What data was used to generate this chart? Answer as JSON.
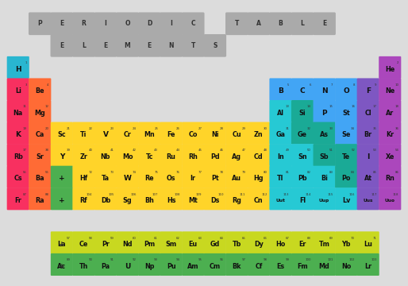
{
  "colors": {
    "H_alkali": "#29b6d0",
    "alkali": "#f83060",
    "alkaline": "#ff6b35",
    "transition": "#ffd429",
    "lanthanide": "#c8d820",
    "actinide": "#4caf50",
    "post_transition": "#26c9d4",
    "metalloid": "#1aaa96",
    "nonmetal": "#42a5f5",
    "halogen": "#7e57c2",
    "noble": "#ab47bc",
    "placeholder": "#4caf50",
    "title_box": "#aaaaaa"
  },
  "title_row1": [
    {
      "ltr": "P",
      "ci": 1
    },
    {
      "ltr": "E",
      "ci": 2
    },
    {
      "ltr": "R",
      "ci": 3
    },
    {
      "ltr": "I",
      "ci": 4
    },
    {
      "ltr": "O",
      "ci": 5
    },
    {
      "ltr": "D",
      "ci": 6
    },
    {
      "ltr": "I",
      "ci": 7
    },
    {
      "ltr": "C",
      "ci": 8
    },
    {
      "ltr": "T",
      "ci": 10
    },
    {
      "ltr": "A",
      "ci": 11
    },
    {
      "ltr": "B",
      "ci": 12
    },
    {
      "ltr": "L",
      "ci": 13
    },
    {
      "ltr": "E",
      "ci": 14
    }
  ],
  "title_row2": [
    {
      "ltr": "E",
      "ci": 2
    },
    {
      "ltr": "L",
      "ci": 3
    },
    {
      "ltr": "E",
      "ci": 4
    },
    {
      "ltr": "M",
      "ci": 5
    },
    {
      "ltr": "E",
      "ci": 6
    },
    {
      "ltr": "N",
      "ci": 7
    },
    {
      "ltr": "T",
      "ci": 8
    },
    {
      "ltr": "S",
      "ci": 9
    }
  ],
  "elements": [
    {
      "sym": "H",
      "num": 1,
      "col": 0,
      "row": 2,
      "color": "H_alkali"
    },
    {
      "sym": "He",
      "num": 2,
      "col": 17,
      "row": 2,
      "color": "noble"
    },
    {
      "sym": "Li",
      "num": 3,
      "col": 0,
      "row": 3,
      "color": "alkali"
    },
    {
      "sym": "Be",
      "num": 4,
      "col": 1,
      "row": 3,
      "color": "alkaline"
    },
    {
      "sym": "B",
      "num": 5,
      "col": 12,
      "row": 3,
      "color": "nonmetal"
    },
    {
      "sym": "C",
      "num": 6,
      "col": 13,
      "row": 3,
      "color": "nonmetal"
    },
    {
      "sym": "N",
      "num": 7,
      "col": 14,
      "row": 3,
      "color": "nonmetal"
    },
    {
      "sym": "O",
      "num": 8,
      "col": 15,
      "row": 3,
      "color": "nonmetal"
    },
    {
      "sym": "F",
      "num": 9,
      "col": 16,
      "row": 3,
      "color": "halogen"
    },
    {
      "sym": "Ne",
      "num": 10,
      "col": 17,
      "row": 3,
      "color": "noble"
    },
    {
      "sym": "Na",
      "num": 11,
      "col": 0,
      "row": 4,
      "color": "alkali"
    },
    {
      "sym": "Mg",
      "num": 12,
      "col": 1,
      "row": 4,
      "color": "alkaline"
    },
    {
      "sym": "Al",
      "num": 13,
      "col": 12,
      "row": 4,
      "color": "post_transition"
    },
    {
      "sym": "Si",
      "num": 14,
      "col": 13,
      "row": 4,
      "color": "metalloid"
    },
    {
      "sym": "P",
      "num": 15,
      "col": 14,
      "row": 4,
      "color": "nonmetal"
    },
    {
      "sym": "St",
      "num": 16,
      "col": 15,
      "row": 4,
      "color": "nonmetal"
    },
    {
      "sym": "Cl",
      "num": 17,
      "col": 16,
      "row": 4,
      "color": "halogen"
    },
    {
      "sym": "Ar",
      "num": 18,
      "col": 17,
      "row": 4,
      "color": "noble"
    },
    {
      "sym": "K",
      "num": 19,
      "col": 0,
      "row": 5,
      "color": "alkali"
    },
    {
      "sym": "Ca",
      "num": 20,
      "col": 1,
      "row": 5,
      "color": "alkaline"
    },
    {
      "sym": "Sc",
      "num": 21,
      "col": 2,
      "row": 5,
      "color": "transition"
    },
    {
      "sym": "Ti",
      "num": 22,
      "col": 3,
      "row": 5,
      "color": "transition"
    },
    {
      "sym": "V",
      "num": 23,
      "col": 4,
      "row": 5,
      "color": "transition"
    },
    {
      "sym": "Cr",
      "num": 24,
      "col": 5,
      "row": 5,
      "color": "transition"
    },
    {
      "sym": "Mn",
      "num": 25,
      "col": 6,
      "row": 5,
      "color": "transition"
    },
    {
      "sym": "Fe",
      "num": 26,
      "col": 7,
      "row": 5,
      "color": "transition"
    },
    {
      "sym": "Co",
      "num": 27,
      "col": 8,
      "row": 5,
      "color": "transition"
    },
    {
      "sym": "Ni",
      "num": 28,
      "col": 9,
      "row": 5,
      "color": "transition"
    },
    {
      "sym": "Cu",
      "num": 29,
      "col": 10,
      "row": 5,
      "color": "transition"
    },
    {
      "sym": "Zn",
      "num": 30,
      "col": 11,
      "row": 5,
      "color": "transition"
    },
    {
      "sym": "Ga",
      "num": 31,
      "col": 12,
      "row": 5,
      "color": "post_transition"
    },
    {
      "sym": "Ge",
      "num": 32,
      "col": 13,
      "row": 5,
      "color": "metalloid"
    },
    {
      "sym": "As",
      "num": 33,
      "col": 14,
      "row": 5,
      "color": "metalloid"
    },
    {
      "sym": "Se",
      "num": 34,
      "col": 15,
      "row": 5,
      "color": "nonmetal"
    },
    {
      "sym": "Br",
      "num": 35,
      "col": 16,
      "row": 5,
      "color": "halogen"
    },
    {
      "sym": "Kr",
      "num": 36,
      "col": 17,
      "row": 5,
      "color": "noble"
    },
    {
      "sym": "Rb",
      "num": 37,
      "col": 0,
      "row": 6,
      "color": "alkali"
    },
    {
      "sym": "Sr",
      "num": 38,
      "col": 1,
      "row": 6,
      "color": "alkaline"
    },
    {
      "sym": "Y",
      "num": 39,
      "col": 2,
      "row": 6,
      "color": "transition"
    },
    {
      "sym": "Zr",
      "num": 40,
      "col": 3,
      "row": 6,
      "color": "transition"
    },
    {
      "sym": "Nb",
      "num": 41,
      "col": 4,
      "row": 6,
      "color": "transition"
    },
    {
      "sym": "Mo",
      "num": 42,
      "col": 5,
      "row": 6,
      "color": "transition"
    },
    {
      "sym": "Tc",
      "num": 43,
      "col": 6,
      "row": 6,
      "color": "transition"
    },
    {
      "sym": "Ru",
      "num": 44,
      "col": 7,
      "row": 6,
      "color": "transition"
    },
    {
      "sym": "Rh",
      "num": 45,
      "col": 8,
      "row": 6,
      "color": "transition"
    },
    {
      "sym": "Pd",
      "num": 46,
      "col": 9,
      "row": 6,
      "color": "transition"
    },
    {
      "sym": "Ag",
      "num": 47,
      "col": 10,
      "row": 6,
      "color": "transition"
    },
    {
      "sym": "Cd",
      "num": 48,
      "col": 11,
      "row": 6,
      "color": "transition"
    },
    {
      "sym": "In",
      "num": 49,
      "col": 12,
      "row": 6,
      "color": "post_transition"
    },
    {
      "sym": "Sn",
      "num": 50,
      "col": 13,
      "row": 6,
      "color": "post_transition"
    },
    {
      "sym": "Sb",
      "num": 51,
      "col": 14,
      "row": 6,
      "color": "metalloid"
    },
    {
      "sym": "Te",
      "num": 52,
      "col": 15,
      "row": 6,
      "color": "metalloid"
    },
    {
      "sym": "I",
      "num": 53,
      "col": 16,
      "row": 6,
      "color": "halogen"
    },
    {
      "sym": "Xe",
      "num": 54,
      "col": 17,
      "row": 6,
      "color": "noble"
    },
    {
      "sym": "Cs",
      "num": 55,
      "col": 0,
      "row": 7,
      "color": "alkali"
    },
    {
      "sym": "Ba",
      "num": 56,
      "col": 1,
      "row": 7,
      "color": "alkaline"
    },
    {
      "sym": "+",
      "num": null,
      "col": 2,
      "row": 7,
      "color": "placeholder"
    },
    {
      "sym": "Hf",
      "num": 72,
      "col": 3,
      "row": 7,
      "color": "transition"
    },
    {
      "sym": "Ta",
      "num": 73,
      "col": 4,
      "row": 7,
      "color": "transition"
    },
    {
      "sym": "W",
      "num": 74,
      "col": 5,
      "row": 7,
      "color": "transition"
    },
    {
      "sym": "Re",
      "num": 75,
      "col": 6,
      "row": 7,
      "color": "transition"
    },
    {
      "sym": "Os",
      "num": 76,
      "col": 7,
      "row": 7,
      "color": "transition"
    },
    {
      "sym": "Ir",
      "num": 77,
      "col": 8,
      "row": 7,
      "color": "transition"
    },
    {
      "sym": "Pt",
      "num": 78,
      "col": 9,
      "row": 7,
      "color": "transition"
    },
    {
      "sym": "Au",
      "num": 79,
      "col": 10,
      "row": 7,
      "color": "transition"
    },
    {
      "sym": "Hg",
      "num": 80,
      "col": 11,
      "row": 7,
      "color": "transition"
    },
    {
      "sym": "Tl",
      "num": 81,
      "col": 12,
      "row": 7,
      "color": "post_transition"
    },
    {
      "sym": "Pb",
      "num": 82,
      "col": 13,
      "row": 7,
      "color": "post_transition"
    },
    {
      "sym": "Bi",
      "num": 83,
      "col": 14,
      "row": 7,
      "color": "post_transition"
    },
    {
      "sym": "Po",
      "num": 84,
      "col": 15,
      "row": 7,
      "color": "metalloid"
    },
    {
      "sym": "At",
      "num": 85,
      "col": 16,
      "row": 7,
      "color": "halogen"
    },
    {
      "sym": "Rn",
      "num": 86,
      "col": 17,
      "row": 7,
      "color": "noble"
    },
    {
      "sym": "Fr",
      "num": 87,
      "col": 0,
      "row": 8,
      "color": "alkali"
    },
    {
      "sym": "Ra",
      "num": 88,
      "col": 1,
      "row": 8,
      "color": "alkaline"
    },
    {
      "sym": "+",
      "num": null,
      "col": 2,
      "row": 8,
      "color": "placeholder"
    },
    {
      "sym": "Rf",
      "num": 104,
      "col": 3,
      "row": 8,
      "color": "transition"
    },
    {
      "sym": "Db",
      "num": 105,
      "col": 4,
      "row": 8,
      "color": "transition"
    },
    {
      "sym": "Sg",
      "num": 106,
      "col": 5,
      "row": 8,
      "color": "transition"
    },
    {
      "sym": "Bh",
      "num": 107,
      "col": 6,
      "row": 8,
      "color": "transition"
    },
    {
      "sym": "Hs",
      "num": 108,
      "col": 7,
      "row": 8,
      "color": "transition"
    },
    {
      "sym": "Mt",
      "num": 109,
      "col": 8,
      "row": 8,
      "color": "transition"
    },
    {
      "sym": "Ds",
      "num": 110,
      "col": 9,
      "row": 8,
      "color": "transition"
    },
    {
      "sym": "Rg",
      "num": 111,
      "col": 10,
      "row": 8,
      "color": "transition"
    },
    {
      "sym": "Cn",
      "num": 112,
      "col": 11,
      "row": 8,
      "color": "transition"
    },
    {
      "sym": "Uut",
      "num": 113,
      "col": 12,
      "row": 8,
      "color": "post_transition"
    },
    {
      "sym": "Fl",
      "num": 114,
      "col": 13,
      "row": 8,
      "color": "post_transition"
    },
    {
      "sym": "Uup",
      "num": 115,
      "col": 14,
      "row": 8,
      "color": "post_transition"
    },
    {
      "sym": "Lv",
      "num": 116,
      "col": 15,
      "row": 8,
      "color": "post_transition"
    },
    {
      "sym": "Uus",
      "num": 117,
      "col": 16,
      "row": 8,
      "color": "halogen"
    },
    {
      "sym": "Uuo",
      "num": 118,
      "col": 17,
      "row": 8,
      "color": "noble"
    },
    {
      "sym": "La",
      "num": 57,
      "col": 3,
      "row": 10,
      "color": "lanthanide"
    },
    {
      "sym": "Ce",
      "num": 58,
      "col": 4,
      "row": 10,
      "color": "lanthanide"
    },
    {
      "sym": "Pr",
      "num": 59,
      "col": 5,
      "row": 10,
      "color": "lanthanide"
    },
    {
      "sym": "Nd",
      "num": 60,
      "col": 6,
      "row": 10,
      "color": "lanthanide"
    },
    {
      "sym": "Pm",
      "num": 61,
      "col": 7,
      "row": 10,
      "color": "lanthanide"
    },
    {
      "sym": "Sm",
      "num": 62,
      "col": 8,
      "row": 10,
      "color": "lanthanide"
    },
    {
      "sym": "Eu",
      "num": 63,
      "col": 9,
      "row": 10,
      "color": "lanthanide"
    },
    {
      "sym": "Gd",
      "num": 64,
      "col": 10,
      "row": 10,
      "color": "lanthanide"
    },
    {
      "sym": "Tb",
      "num": 65,
      "col": 11,
      "row": 10,
      "color": "lanthanide"
    },
    {
      "sym": "Dy",
      "num": 66,
      "col": 12,
      "row": 10,
      "color": "lanthanide"
    },
    {
      "sym": "Ho",
      "num": 67,
      "col": 13,
      "row": 10,
      "color": "lanthanide"
    },
    {
      "sym": "Er",
      "num": 68,
      "col": 14,
      "row": 10,
      "color": "lanthanide"
    },
    {
      "sym": "Tm",
      "num": 69,
      "col": 15,
      "row": 10,
      "color": "lanthanide"
    },
    {
      "sym": "Yb",
      "num": 70,
      "col": 16,
      "row": 10,
      "color": "lanthanide"
    },
    {
      "sym": "Lu",
      "num": 71,
      "col": 17,
      "row": 10,
      "color": "lanthanide"
    },
    {
      "sym": "Ac",
      "num": 89,
      "col": 3,
      "row": 11,
      "color": "actinide"
    },
    {
      "sym": "Th",
      "num": 90,
      "col": 4,
      "row": 11,
      "color": "actinide"
    },
    {
      "sym": "Pa",
      "num": 91,
      "col": 5,
      "row": 11,
      "color": "actinide"
    },
    {
      "sym": "U",
      "num": 92,
      "col": 6,
      "row": 11,
      "color": "actinide"
    },
    {
      "sym": "Np",
      "num": 93,
      "col": 7,
      "row": 11,
      "color": "actinide"
    },
    {
      "sym": "Pu",
      "num": 94,
      "col": 8,
      "row": 11,
      "color": "actinide"
    },
    {
      "sym": "Am",
      "num": 95,
      "col": 9,
      "row": 11,
      "color": "actinide"
    },
    {
      "sym": "Cm",
      "num": 96,
      "col": 10,
      "row": 11,
      "color": "actinide"
    },
    {
      "sym": "Bk",
      "num": 97,
      "col": 11,
      "row": 11,
      "color": "actinide"
    },
    {
      "sym": "Cf",
      "num": 98,
      "col": 12,
      "row": 11,
      "color": "actinide"
    },
    {
      "sym": "Es",
      "num": 99,
      "col": 13,
      "row": 11,
      "color": "actinide"
    },
    {
      "sym": "Fm",
      "num": 100,
      "col": 14,
      "row": 11,
      "color": "actinide"
    },
    {
      "sym": "Md",
      "num": 101,
      "col": 15,
      "row": 11,
      "color": "actinide"
    },
    {
      "sym": "No",
      "num": 102,
      "col": 16,
      "row": 11,
      "color": "actinide"
    },
    {
      "sym": "Lr",
      "num": 103,
      "col": 17,
      "row": 11,
      "color": "actinide"
    }
  ]
}
